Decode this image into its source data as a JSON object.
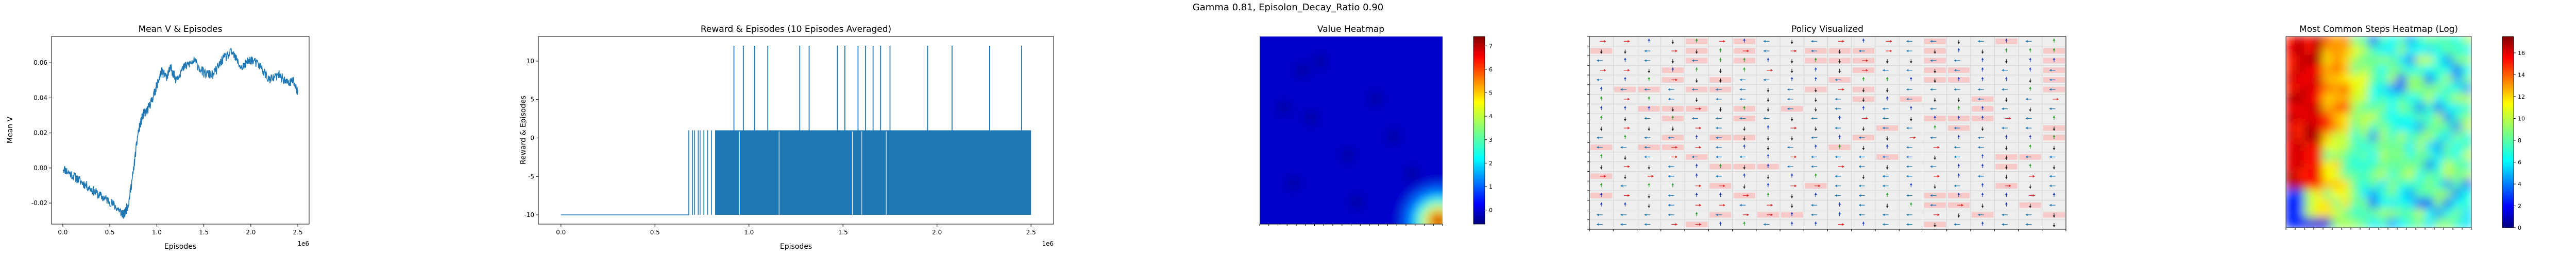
{
  "suptitle": "Gamma  0.81, Episolon_Decay_Ratio 0.90",
  "chart_data": [
    {
      "type": "line",
      "title": "Mean V & Episodes",
      "xlabel": "Episodes",
      "ylabel": "Mean V",
      "xoffset_label": "1e6",
      "xticks": [
        "0.0",
        "0.5",
        "1.0",
        "1.5",
        "2.0",
        "2.5"
      ],
      "yticks": [
        "-0.02",
        "0.00",
        "0.02",
        "0.04",
        "0.06"
      ],
      "xlim": [
        -0.12,
        2.62
      ],
      "ylim": [
        -0.032,
        0.075
      ],
      "color": "#1f77b4",
      "series": [
        {
          "x": [
            0.0,
            0.1,
            0.2,
            0.3,
            0.4,
            0.5,
            0.6,
            0.65,
            0.7,
            0.75,
            0.8,
            0.85,
            0.9,
            0.95,
            1.0,
            1.05,
            1.1,
            1.15,
            1.2,
            1.3,
            1.4,
            1.5,
            1.6,
            1.7,
            1.8,
            1.9,
            2.0,
            2.1,
            2.2,
            2.3,
            2.4,
            2.45,
            2.5
          ],
          "y": [
            0.0,
            -0.004,
            -0.008,
            -0.012,
            -0.016,
            -0.019,
            -0.024,
            -0.027,
            -0.02,
            -0.002,
            0.02,
            0.03,
            0.033,
            0.039,
            0.047,
            0.055,
            0.052,
            0.057,
            0.051,
            0.058,
            0.061,
            0.054,
            0.053,
            0.062,
            0.066,
            0.057,
            0.062,
            0.058,
            0.05,
            0.053,
            0.048,
            0.05,
            0.043
          ]
        }
      ]
    },
    {
      "type": "bar",
      "title": "Reward & Episodes (10 Episodes Averaged)",
      "xlabel": "Episodes",
      "ylabel": "Reward & Episodes",
      "xoffset_label": "1e6",
      "xticks": [
        "0.0",
        "0.5",
        "1.0",
        "1.5",
        "2.0",
        "2.5"
      ],
      "yticks": [
        "-10",
        "-5",
        "0",
        "5",
        "10"
      ],
      "xlim": [
        -0.12,
        2.62
      ],
      "ylim": [
        -11.2,
        13.2
      ],
      "color": "#1f77b4",
      "baseline": -10,
      "dense_region": {
        "from": 0.68,
        "to": 2.5,
        "level": 1
      },
      "spikes_to_12": [
        0.92,
        0.97,
        1.03,
        1.1,
        1.27,
        1.32,
        1.47,
        1.51,
        1.58,
        1.62,
        1.66,
        1.7,
        1.75,
        1.95,
        2.08,
        2.28,
        2.45
      ]
    },
    {
      "type": "heatmap",
      "title": "Value Heatmap",
      "colormap": "jet",
      "grid_size": 20,
      "colorbar_ticks": [
        "0",
        "1",
        "2",
        "3",
        "4",
        "5",
        "6",
        "7"
      ],
      "vmin": -0.6,
      "vmax": 7.4,
      "base_value": 0.0,
      "hot_corner": {
        "value": 7.0,
        "location": "bottom-right"
      },
      "dark_patches": [
        [
          4,
          3
        ],
        [
          6,
          2
        ],
        [
          2,
          7
        ],
        [
          5,
          8
        ],
        [
          9,
          12
        ],
        [
          12,
          6
        ],
        [
          14,
          10
        ],
        [
          3,
          15
        ],
        [
          10,
          17
        ],
        [
          16,
          14
        ]
      ]
    },
    {
      "type": "heatmap",
      "title": "Policy Visualized",
      "grid_size": 20,
      "legend": "none",
      "arrow_colors": {
        "up": "#1f3fbf",
        "down": "#222222",
        "left": "#1f77b4",
        "right": "#d62728",
        "mixed": "#2ca02c"
      }
    },
    {
      "type": "heatmap",
      "title": "Most Common Steps Heatmap (Log)",
      "colormap": "jet",
      "grid_size": 20,
      "colorbar_ticks": [
        "0",
        "2",
        "4",
        "6",
        "8",
        "10",
        "12",
        "14",
        "16"
      ],
      "vmin": 0,
      "vmax": 17.5
    }
  ]
}
